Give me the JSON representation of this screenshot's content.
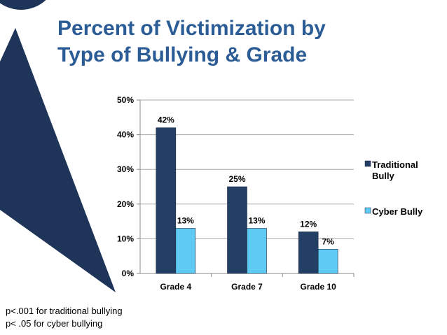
{
  "slide": {
    "title_line_1": "Percent of Victimization by",
    "title_line_2": "Type of Bullying & Grade",
    "note_line_1": "p<.001 for traditional bullying",
    "note_line_2": "p<  .05 for cyber bullying"
  },
  "colors": {
    "title": "#2c5c96",
    "decor": "#1e3559",
    "traditional": "#243f66",
    "cyber": "#5fcbf5",
    "gridline": "#a8a8a8"
  },
  "chart_data": {
    "type": "bar",
    "title": "",
    "xlabel": "",
    "ylabel": "",
    "categories": [
      "Grade 4",
      "Grade 7",
      "Grade 10"
    ],
    "series": [
      {
        "name": "Traditional Bully",
        "values": [
          42,
          25,
          12
        ],
        "labels": [
          "42%",
          "25%",
          "12%"
        ],
        "color": "#243f66"
      },
      {
        "name": "Cyber Bully",
        "values": [
          13,
          13,
          7
        ],
        "labels": [
          "13%",
          "13%",
          "7%"
        ],
        "color": "#5fcbf5"
      }
    ],
    "ylim": [
      0,
      50
    ],
    "yticks": [
      "0%",
      "10%",
      "20%",
      "30%",
      "40%",
      "50%"
    ],
    "grid": true,
    "legend": "right",
    "legend_lines": [
      [
        "Traditional",
        "Bully"
      ],
      [
        "Cyber Bully"
      ]
    ]
  }
}
